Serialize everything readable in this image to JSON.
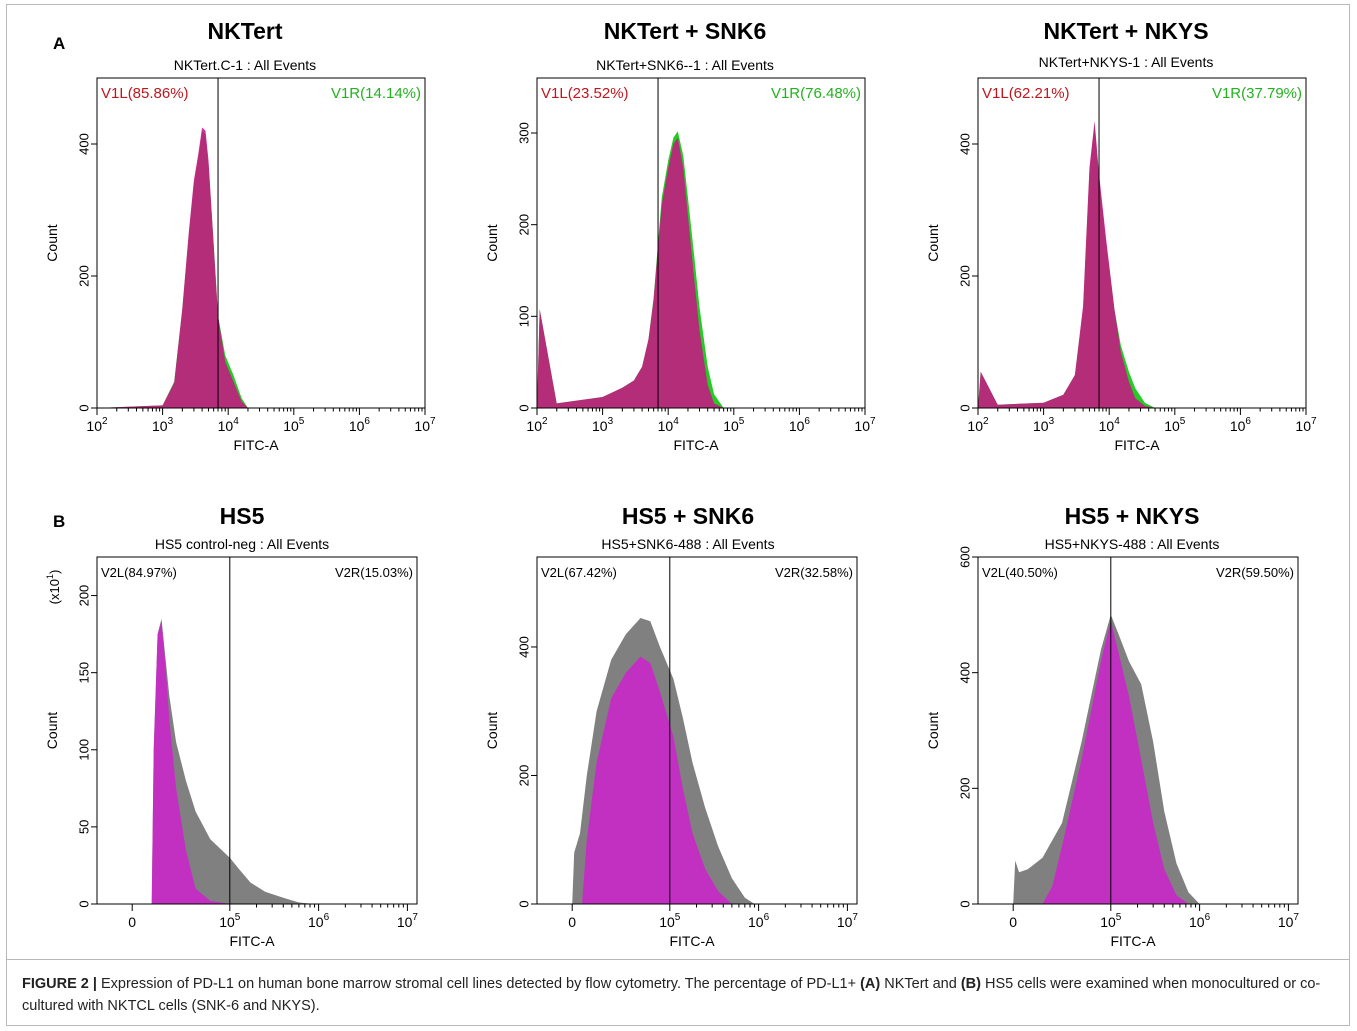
{
  "figure": {
    "panel_a_letter": "A",
    "panel_b_letter": "B",
    "caption_label": "FIGURE 2 |",
    "caption_part1": " Expression of PD-L1 on human bone marrow stromal cell lines detected by flow cytometry. The percentage of PD-L1+ ",
    "caption_a": "(A)",
    "caption_part2": " NKTert and ",
    "caption_b": "(B)",
    "caption_part3": " HS5 cells were examined when monocultured or co-cultured with NKTCL cells (SNK-6 and NKYS)."
  },
  "plots": [
    {
      "title": "NKTert",
      "subtitle": "NKTert.C-1 : All Events"
    },
    {
      "title": "NKTert + SNK6",
      "subtitle": "NKTert+SNK6--1 : All Events"
    },
    {
      "title": "NKTert + NKYS",
      "subtitle": "NKTert+NKYS-1 : All Events"
    },
    {
      "title": "HS5",
      "subtitle": "HS5 control-neg : All Events"
    },
    {
      "title": "HS5 + SNK6",
      "subtitle": "HS5+SNK6-488 : All Events"
    },
    {
      "title": "HS5 + NKYS",
      "subtitle": "HS5+NKYS-488 : All Events"
    }
  ],
  "chart_data": [
    {
      "type": "area",
      "panel": "A",
      "title": "NKTert",
      "subtitle": "NKTert.C-1 : All Events",
      "xlabel": "FITC-A",
      "ylabel": "Count",
      "x_scale": "log",
      "xlim": [
        100,
        10000000
      ],
      "ylim": [
        0,
        500
      ],
      "x_ticks": [
        "10^2",
        "10^3",
        "10^4",
        "10^5",
        "10^6",
        "10^7"
      ],
      "y_ticks": [
        0,
        200,
        400
      ],
      "gate_x": 7000,
      "gates": [
        {
          "label": "V1L(85.86%)",
          "side": "left",
          "color": "#c0161d"
        },
        {
          "label": "V1R(14.14%)",
          "side": "right",
          "color": "#22b21e"
        }
      ],
      "series": [
        {
          "color": "#22cc22",
          "x": [
            100,
            1000,
            1500,
            2000,
            2500,
            3000,
            3500,
            4000,
            4500,
            5000,
            6000,
            7000,
            9000,
            12000,
            16000,
            20000
          ],
          "values": [
            0,
            4,
            40,
            150,
            260,
            340,
            380,
            420,
            415,
            370,
            250,
            140,
            80,
            50,
            15,
            0
          ]
        },
        {
          "color": "#cc1188",
          "x": [
            100,
            1000,
            1500,
            2000,
            2500,
            3000,
            3500,
            4000,
            4500,
            5000,
            6000,
            7000,
            9000,
            12000,
            16000,
            20000
          ],
          "values": [
            0,
            4,
            38,
            150,
            265,
            345,
            385,
            425,
            420,
            375,
            250,
            140,
            70,
            40,
            10,
            0
          ]
        }
      ]
    },
    {
      "type": "area",
      "panel": "A",
      "title": "NKTert + SNK6",
      "subtitle": "NKTert+SNK6--1 : All Events",
      "xlabel": "FITC-A",
      "ylabel": "Count",
      "x_scale": "log",
      "xlim": [
        100,
        10000000
      ],
      "ylim": [
        0,
        360
      ],
      "x_ticks": [
        "10^2",
        "10^3",
        "10^4",
        "10^5",
        "10^6",
        "10^7"
      ],
      "y_ticks": [
        0,
        100,
        200,
        300
      ],
      "gate_x": 7000,
      "gates": [
        {
          "label": "V1L(23.52%)",
          "side": "left",
          "color": "#c0161d"
        },
        {
          "label": "V1R(76.48%)",
          "side": "right",
          "color": "#22b21e"
        }
      ],
      "series": [
        {
          "color": "#22cc22",
          "x": [
            100,
            110,
            200,
            1000,
            2000,
            3000,
            4000,
            5000,
            6000,
            7000,
            8000,
            10000,
            12000,
            14000,
            17000,
            20000,
            25000,
            30000,
            40000,
            50000,
            70000
          ],
          "values": [
            0,
            108,
            5,
            12,
            22,
            30,
            45,
            75,
            120,
            180,
            230,
            270,
            295,
            302,
            275,
            230,
            165,
            110,
            45,
            15,
            0
          ]
        },
        {
          "color": "#cc1188",
          "x": [
            100,
            110,
            200,
            1000,
            2000,
            3000,
            4000,
            5000,
            6000,
            7000,
            8000,
            10000,
            12000,
            14000,
            17000,
            20000,
            25000,
            30000,
            40000,
            50000,
            70000
          ],
          "values": [
            0,
            108,
            5,
            12,
            22,
            30,
            45,
            75,
            118,
            175,
            222,
            262,
            288,
            295,
            262,
            210,
            140,
            85,
            25,
            5,
            0
          ]
        }
      ]
    },
    {
      "type": "area",
      "panel": "A",
      "title": "NKTert + NKYS",
      "subtitle": "NKTert+NKYS-1 : All Events",
      "xlabel": "FITC-A",
      "ylabel": "Count",
      "x_scale": "log",
      "xlim": [
        100,
        10000000
      ],
      "ylim": [
        0,
        500
      ],
      "x_ticks": [
        "10^2",
        "10^3",
        "10^4",
        "10^5",
        "10^6",
        "10^7"
      ],
      "y_ticks": [
        0,
        200,
        400
      ],
      "gate_x": 7000,
      "gates": [
        {
          "label": "V1L(62.21%)",
          "side": "left",
          "color": "#c0161d"
        },
        {
          "label": "V1R(37.79%)",
          "side": "right",
          "color": "#22b21e"
        }
      ],
      "series": [
        {
          "color": "#22cc22",
          "x": [
            100,
            110,
            200,
            1000,
            2000,
            3000,
            4000,
            5000,
            6000,
            7000,
            9000,
            12000,
            15000,
            20000,
            25000,
            35000,
            50000
          ],
          "values": [
            0,
            55,
            5,
            8,
            20,
            50,
            150,
            360,
            430,
            350,
            250,
            150,
            95,
            55,
            30,
            8,
            0
          ]
        },
        {
          "color": "#cc1188",
          "x": [
            100,
            110,
            200,
            1000,
            2000,
            3000,
            4000,
            5000,
            6000,
            7000,
            9000,
            12000,
            15000,
            20000,
            25000,
            35000,
            50000
          ],
          "values": [
            0,
            55,
            5,
            8,
            20,
            50,
            155,
            365,
            435,
            355,
            255,
            150,
            85,
            40,
            15,
            3,
            0
          ]
        }
      ]
    },
    {
      "type": "area",
      "panel": "B",
      "title": "HS5",
      "subtitle": "HS5 control-neg : All Events",
      "xlabel": "FITC-A",
      "ylabel": "Count",
      "y_multiplier": "(x10^1)",
      "x_scale": "biexponential",
      "xlim": [
        -50000,
        10000000
      ],
      "ylim": [
        0,
        225
      ],
      "x_ticks": [
        "0",
        "10^5",
        "10^6",
        "10^7"
      ],
      "y_ticks": [
        0,
        50,
        100,
        150,
        200
      ],
      "gate_x": 100000,
      "gates": [
        {
          "label": "V2L(84.97%)",
          "side": "left",
          "color": "#000000"
        },
        {
          "label": "V2R(15.03%)",
          "side": "right",
          "color": "#000000"
        }
      ],
      "series": [
        {
          "color": "#808080",
          "x": [
            20000,
            22000,
            26000,
            30000,
            34000,
            38000,
            45000,
            55000,
            65000,
            80000,
            100000,
            130000,
            170000,
            250000,
            400000,
            600000,
            900000
          ],
          "values": [
            0,
            100,
            175,
            185,
            160,
            135,
            105,
            80,
            60,
            42,
            30,
            22,
            14,
            8,
            4,
            1,
            0
          ]
        },
        {
          "color": "#cc22cc",
          "x": [
            20000,
            22000,
            26000,
            30000,
            34000,
            38000,
            45000,
            55000,
            65000,
            80000,
            100000,
            130000
          ],
          "values": [
            0,
            100,
            175,
            183,
            155,
            120,
            75,
            35,
            10,
            2,
            0,
            0
          ]
        }
      ]
    },
    {
      "type": "area",
      "panel": "B",
      "title": "HS5 + SNK6",
      "subtitle": "HS5+SNK6-488 : All Events",
      "xlabel": "FITC-A",
      "ylabel": "Count",
      "x_scale": "biexponential",
      "xlim": [
        -50000,
        10000000
      ],
      "ylim": [
        0,
        540
      ],
      "x_ticks": [
        "0",
        "10^5",
        "10^6",
        "10^7"
      ],
      "y_ticks": [
        0,
        200,
        400
      ],
      "gate_x": 100000,
      "gates": [
        {
          "label": "V2L(67.42%)",
          "side": "left",
          "color": "#000000"
        },
        {
          "label": "V2R(32.58%)",
          "side": "right",
          "color": "#000000"
        }
      ],
      "series": [
        {
          "color": "#808080",
          "x": [
            0,
            2000,
            8000,
            15000,
            25000,
            40000,
            55000,
            70000,
            80000,
            90000,
            110000,
            140000,
            180000,
            250000,
            350000,
            500000,
            700000,
            900000
          ],
          "values": [
            0,
            80,
            110,
            200,
            300,
            380,
            420,
            445,
            440,
            400,
            350,
            290,
            220,
            150,
            90,
            40,
            10,
            0
          ]
        },
        {
          "color": "#cc22cc",
          "x": [
            10000,
            15000,
            25000,
            40000,
            55000,
            70000,
            80000,
            90000,
            110000,
            140000,
            180000,
            250000,
            350000,
            500000
          ],
          "values": [
            0,
            100,
            220,
            320,
            360,
            385,
            375,
            330,
            260,
            180,
            110,
            55,
            20,
            0
          ]
        }
      ]
    },
    {
      "type": "area",
      "panel": "B",
      "title": "HS5 + NKYS",
      "subtitle": "HS5+NKYS-488 : All Events",
      "xlabel": "FITC-A",
      "ylabel": "Count",
      "x_scale": "biexponential",
      "xlim": [
        -50000,
        10000000
      ],
      "ylim": [
        0,
        600
      ],
      "x_ticks": [
        "0",
        "10^5",
        "10^6",
        "10^7"
      ],
      "y_ticks": [
        0,
        200,
        400,
        600
      ],
      "gate_x": 100000,
      "gates": [
        {
          "label": "V2L(40.50%)",
          "side": "left",
          "color": "#000000"
        },
        {
          "label": "V2R(59.50%)",
          "side": "right",
          "color": "#000000"
        }
      ],
      "series": [
        {
          "color": "#808080",
          "x": [
            0,
            2000,
            6000,
            15000,
            30000,
            50000,
            70000,
            90000,
            100000,
            120000,
            160000,
            220000,
            300000,
            400000,
            550000,
            750000,
            1000000
          ],
          "values": [
            0,
            75,
            55,
            60,
            80,
            140,
            280,
            440,
            500,
            470,
            420,
            380,
            280,
            160,
            70,
            20,
            0
          ]
        },
        {
          "color": "#cc22cc",
          "x": [
            30000,
            40000,
            50000,
            70000,
            90000,
            100000,
            120000,
            160000,
            220000,
            300000,
            400000,
            550000,
            750000
          ],
          "values": [
            0,
            30,
            100,
            250,
            420,
            490,
            440,
            360,
            250,
            140,
            60,
            15,
            0
          ]
        }
      ]
    }
  ]
}
